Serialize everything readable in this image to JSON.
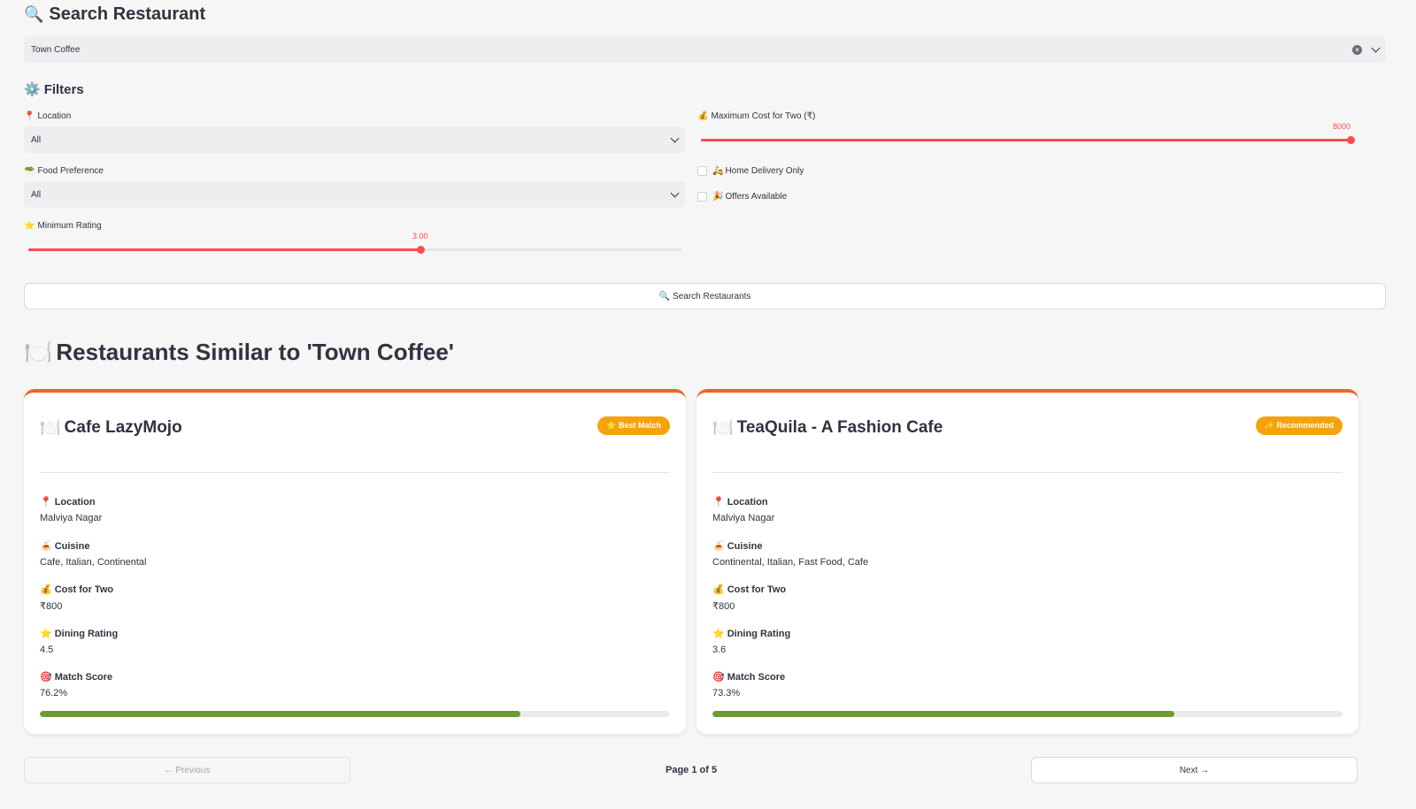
{
  "search": {
    "title": "Search Restaurant",
    "icon": "🔍",
    "selected_value": "Town Coffee"
  },
  "filters": {
    "title": "Filters",
    "icon": "⚙️",
    "location": {
      "label": "Location",
      "icon": "📍",
      "value": "All"
    },
    "max_cost": {
      "label": "Maximum Cost for Two (₹)",
      "icon": "💰",
      "value": "8000",
      "fraction": 1.0
    },
    "food_pref": {
      "label": "Food Preference",
      "icon": "🥗",
      "value": "All"
    },
    "home_delivery": {
      "label": "Home Delivery Only",
      "icon": "🛵",
      "checked": false
    },
    "offers": {
      "label": "Offers Available",
      "icon": "🎉",
      "checked": false
    },
    "min_rating": {
      "label": "Minimum Rating",
      "icon": "⭐",
      "value": "3.00",
      "fraction": 0.6
    },
    "search_button": "Search Restaurants",
    "search_button_icon": "🔍"
  },
  "results": {
    "title": "Restaurants Similar to 'Town Coffee'",
    "icon": "🍽️",
    "cards": [
      {
        "name": "Cafe LazyMojo",
        "icon": "🍽️",
        "badge": "⭐ Best Match",
        "location_label": "Location",
        "location_icon": "📍",
        "location": "Malviya Nagar",
        "cuisine_label": "Cuisine",
        "cuisine_icon": "🍝",
        "cuisine": "Cafe, Italian, Continental",
        "cost_label": "Cost for Two",
        "cost_icon": "💰",
        "cost": "₹800",
        "rating_label": "Dining Rating",
        "rating_icon": "⭐",
        "rating": "4.5",
        "match_label": "Match Score",
        "match_icon": "🎯",
        "match": "76.2%",
        "match_fraction": 0.762
      },
      {
        "name": "TeaQuila - A Fashion Cafe",
        "icon": "🍽️",
        "badge": "✨ Recommended",
        "location_label": "Location",
        "location_icon": "📍",
        "location": "Malviya Nagar",
        "cuisine_label": "Cuisine",
        "cuisine_icon": "🍝",
        "cuisine": "Continental, Italian, Fast Food, Cafe",
        "cost_label": "Cost for Two",
        "cost_icon": "💰",
        "cost": "₹800",
        "rating_label": "Dining Rating",
        "rating_icon": "⭐",
        "rating": "3.6",
        "match_label": "Match Score",
        "match_icon": "🎯",
        "match": "73.3%",
        "match_fraction": 0.733
      }
    ]
  },
  "pagination": {
    "previous": "← Previous",
    "indicator": "Page 1 of 5",
    "next": "Next →"
  },
  "colors": {
    "accent": "#ff4b4b",
    "card_top": "#f26522",
    "badge": "#f5a30b",
    "match_bar": "#6f9b35"
  }
}
